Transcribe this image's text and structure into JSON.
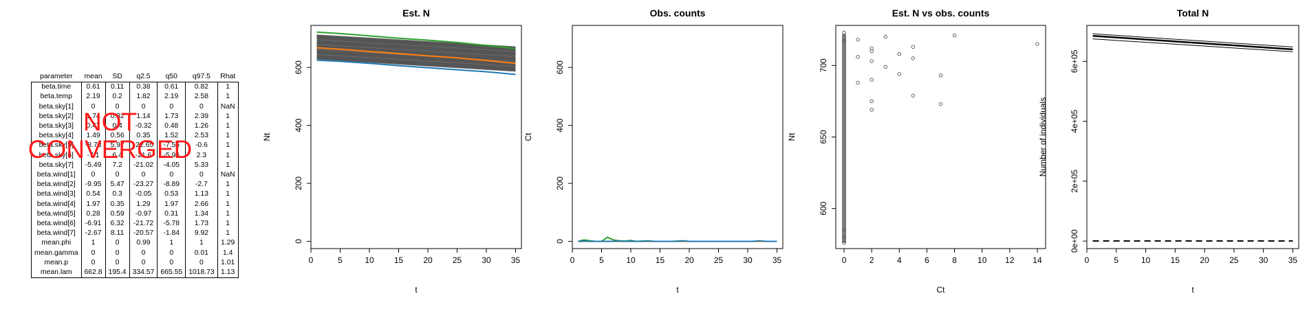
{
  "results_table": {
    "headers": [
      "parameter",
      "mean",
      "SD",
      "q2.5",
      "q50",
      "q97.5",
      "Rhat"
    ],
    "rows": [
      [
        "beta.time",
        "0.61",
        "0.11",
        "0.38",
        "0.61",
        "0.82",
        "1"
      ],
      [
        "beta.temp",
        "2.19",
        "0.2",
        "1.82",
        "2.19",
        "2.58",
        "1"
      ],
      [
        "beta.sky[1]",
        "0",
        "0",
        "0",
        "0",
        "0",
        "NaN"
      ],
      [
        "beta.sky[2]",
        "1.74",
        "0.32",
        "1.14",
        "1.73",
        "2.39",
        "1"
      ],
      [
        "beta.sky[3]",
        "0.47",
        "0.4",
        "-0.32",
        "0.48",
        "1.26",
        "1"
      ],
      [
        "beta.sky[4]",
        "1.49",
        "0.56",
        "0.35",
        "1.52",
        "2.53",
        "1"
      ],
      [
        "beta.sky[5]",
        "-8.73",
        "5.97",
        "-22.65",
        "-7.56",
        "-0.6",
        "1"
      ],
      [
        "beta.sky[6]",
        "-7.1",
        "6.4",
        "-21.6",
        "-5.96",
        "2.3",
        "1"
      ],
      [
        "beta.sky[7]",
        "-5.49",
        "7.2",
        "-21.02",
        "-4.05",
        "5.33",
        "1"
      ],
      [
        "beta.wind[1]",
        "0",
        "0",
        "0",
        "0",
        "0",
        "NaN"
      ],
      [
        "beta.wind[2]",
        "-9.95",
        "5.47",
        "-23.27",
        "-8.89",
        "-2.7",
        "1"
      ],
      [
        "beta.wind[3]",
        "0.54",
        "0.3",
        "-0.05",
        "0.53",
        "1.13",
        "1"
      ],
      [
        "beta.wind[4]",
        "1.97",
        "0.35",
        "1.29",
        "1.97",
        "2.66",
        "1"
      ],
      [
        "beta.wind[5]",
        "0.28",
        "0.59",
        "-0.97",
        "0.31",
        "1.34",
        "1"
      ],
      [
        "beta.wind[6]",
        "-6.91",
        "6.32",
        "-21.72",
        "-5.78",
        "1.73",
        "1"
      ],
      [
        "beta.wind[7]",
        "-2.67",
        "8.11",
        "-20.57",
        "-1.84",
        "9.92",
        "1"
      ],
      [
        "mean.phi",
        "1",
        "0",
        "0.99",
        "1",
        "1",
        "1.29"
      ],
      [
        "mean.gamma",
        "0",
        "0",
        "0",
        "0",
        "0.01",
        "1.4"
      ],
      [
        "mean.p",
        "0",
        "0",
        "0",
        "0",
        "0",
        "1.01"
      ],
      [
        "mean.lam",
        "662.8",
        "195.4",
        "334.57",
        "665.55",
        "1018.73",
        "1.13"
      ]
    ]
  },
  "stamp": {
    "line1": "NOT",
    "line2": "CONVERGED",
    "color": "#ff1a1a"
  },
  "chart_data": [
    {
      "type": "line",
      "title": "Est. N",
      "xlabel": "t",
      "ylabel": "Nt",
      "xlim": [
        0,
        36
      ],
      "ylim": [
        -25,
        745
      ],
      "xticks": [
        0,
        5,
        10,
        15,
        20,
        25,
        30,
        35
      ],
      "yticks": [
        0,
        200,
        400,
        600
      ],
      "band": {
        "x": [
          1,
          35
        ],
        "upper": [
          713,
          672
        ],
        "lower": [
          628,
          586
        ],
        "color": "#555555",
        "description": "dense bundle of estimated Nt trajectories"
      },
      "series": [
        {
          "x": [
            1,
            5,
            10,
            15,
            20,
            25,
            30,
            35
          ],
          "values": [
            722,
            717,
            709,
            701,
            694,
            686,
            676,
            665
          ],
          "color": "#2ca02c"
        },
        {
          "x": [
            1,
            5,
            10,
            15,
            20,
            25,
            30,
            35
          ],
          "values": [
            668,
            663,
            655,
            648,
            640,
            633,
            624,
            614
          ],
          "color": "#ff7f0e"
        },
        {
          "x": [
            1,
            5,
            10,
            15,
            20,
            25,
            30,
            35
          ],
          "values": [
            625,
            621,
            614,
            606,
            599,
            592,
            585,
            576
          ],
          "color": "#1f77b4"
        }
      ]
    },
    {
      "type": "line",
      "title": "Obs. counts",
      "xlabel": "t",
      "ylabel": "Ct",
      "xlim": [
        0,
        36
      ],
      "ylim": [
        -25,
        745
      ],
      "xticks": [
        0,
        5,
        10,
        15,
        20,
        25,
        30,
        35
      ],
      "yticks": [
        0,
        200,
        400,
        600
      ],
      "series": [
        {
          "x": [
            1,
            2,
            3,
            4,
            5,
            6,
            7,
            8,
            9,
            10,
            11,
            12,
            13,
            14,
            15,
            16,
            17,
            18,
            19,
            20,
            21,
            22,
            23,
            24,
            25,
            26,
            27,
            28,
            29,
            30,
            31,
            32,
            33,
            34,
            35
          ],
          "values": [
            0,
            5,
            2,
            0,
            0,
            14,
            5,
            2,
            1,
            3,
            0,
            1,
            2,
            0,
            0,
            0,
            0,
            1,
            2,
            0,
            0,
            0,
            0,
            0,
            0,
            0,
            0,
            0,
            0,
            0,
            0,
            1,
            0,
            0,
            0
          ],
          "color": "#2ca02c"
        },
        {
          "x": [
            1,
            35
          ],
          "values": [
            0,
            0
          ],
          "color": "#ff7f0e"
        },
        {
          "x": [
            1,
            2,
            3,
            4,
            5,
            6,
            7,
            8,
            9,
            10,
            11,
            12,
            13,
            14,
            15,
            16,
            17,
            18,
            19,
            20,
            21,
            22,
            23,
            24,
            25,
            26,
            27,
            28,
            29,
            30,
            31,
            32,
            33,
            34,
            35
          ],
          "values": [
            0,
            1,
            0,
            0,
            0,
            0,
            0,
            1,
            0,
            0,
            0,
            0,
            1,
            0,
            0,
            0,
            0,
            0,
            1,
            0,
            0,
            0,
            0,
            0,
            0,
            0,
            0,
            0,
            0,
            0,
            0,
            2,
            0,
            0,
            0
          ],
          "color": "#1f77b4"
        }
      ]
    },
    {
      "type": "scatter",
      "title": "Est. N vs obs. counts",
      "xlabel": "Ct",
      "ylabel": "Nt",
      "xlim": [
        -0.6,
        14.6
      ],
      "ylim": [
        572,
        728
      ],
      "xticks": [
        0,
        2,
        4,
        6,
        8,
        10,
        12,
        14
      ],
      "yticks": [
        600,
        650,
        700
      ],
      "x_zero_column": {
        "x": 0,
        "y_min": 576,
        "y_max": 722,
        "description": "dense column of points at Ct = 0"
      },
      "points": [
        {
          "x": 0,
          "y": 723
        },
        {
          "x": 0,
          "y": 717
        },
        {
          "x": 0,
          "y": 585
        },
        {
          "x": 0,
          "y": 580
        },
        {
          "x": 0,
          "y": 576
        },
        {
          "x": 1,
          "y": 718
        },
        {
          "x": 1,
          "y": 706
        },
        {
          "x": 1,
          "y": 688
        },
        {
          "x": 2,
          "y": 712
        },
        {
          "x": 2,
          "y": 710
        },
        {
          "x": 2,
          "y": 703
        },
        {
          "x": 2,
          "y": 690
        },
        {
          "x": 2,
          "y": 675
        },
        {
          "x": 2,
          "y": 669
        },
        {
          "x": 3,
          "y": 720
        },
        {
          "x": 3,
          "y": 699
        },
        {
          "x": 4,
          "y": 708
        },
        {
          "x": 4,
          "y": 694
        },
        {
          "x": 5,
          "y": 713
        },
        {
          "x": 5,
          "y": 705
        },
        {
          "x": 5,
          "y": 679
        },
        {
          "x": 7,
          "y": 693
        },
        {
          "x": 7,
          "y": 673
        },
        {
          "x": 8,
          "y": 721
        },
        {
          "x": 14,
          "y": 715
        }
      ]
    },
    {
      "type": "line",
      "title": "Total N",
      "xlabel": "t",
      "ylabel": "Number of individuals",
      "xlim": [
        0,
        36
      ],
      "ylim": [
        -25000,
        720000
      ],
      "xticks": [
        0,
        5,
        10,
        15,
        20,
        25,
        30,
        35
      ],
      "yticks": [
        0,
        200000,
        400000,
        600000
      ],
      "ytick_labels": [
        "0e+00",
        "2e+05",
        "4e+05",
        "6e+05"
      ],
      "series": [
        {
          "x": [
            1,
            35
          ],
          "values": [
            692000,
            648000
          ],
          "style": "solid-thin"
        },
        {
          "x": [
            1,
            35
          ],
          "values": [
            685000,
            640000
          ],
          "style": "solid-thick"
        },
        {
          "x": [
            1,
            35
          ],
          "values": [
            675000,
            632000
          ],
          "style": "solid-thin"
        },
        {
          "x": [
            1,
            35
          ],
          "values": [
            500,
            500
          ],
          "style": "dashed"
        }
      ]
    }
  ]
}
